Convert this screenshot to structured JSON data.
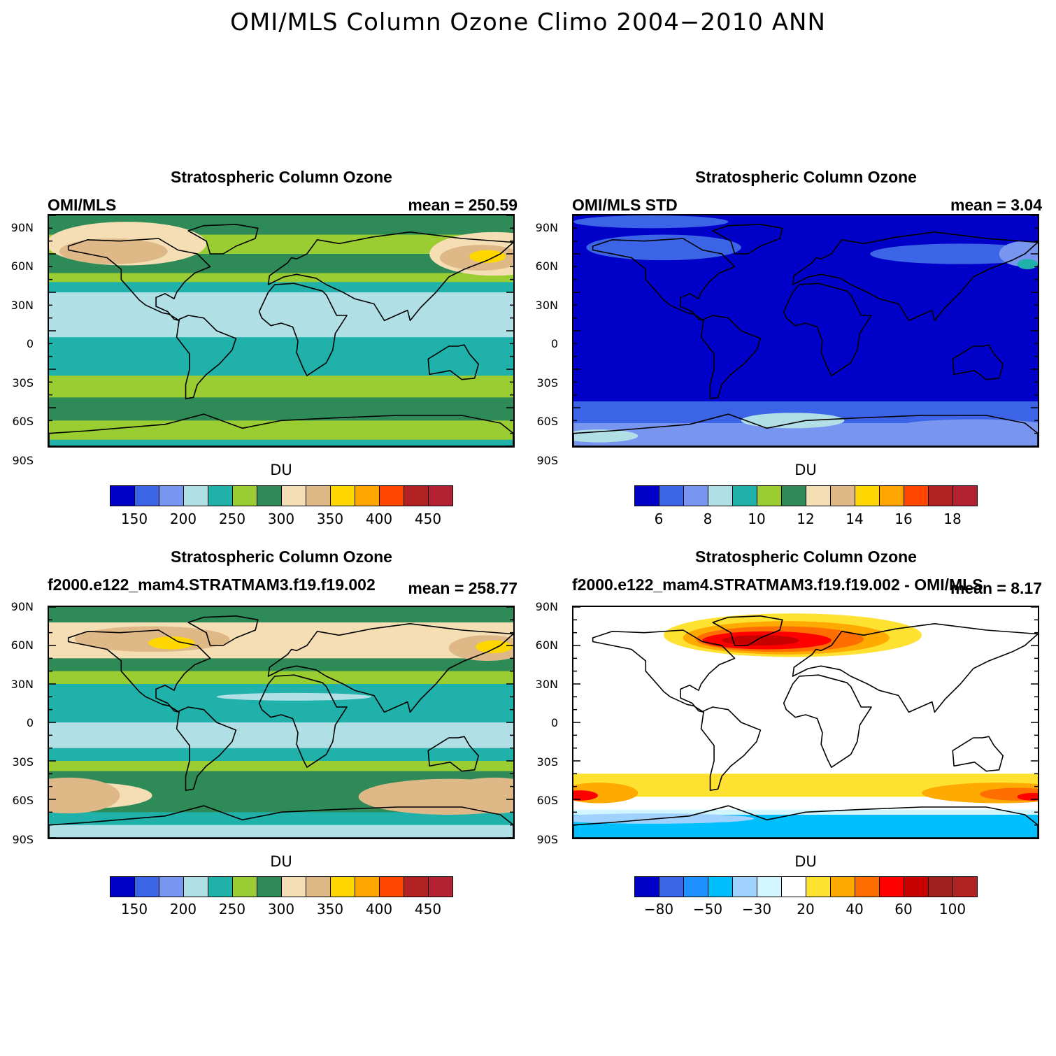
{
  "title": "OMI/MLS Column Ozone Climo 2004−2010 ANN",
  "lat_labels": [
    "90N",
    "60N",
    "30N",
    "0",
    "30S",
    "60S",
    "90S"
  ],
  "panels": [
    {
      "title": "Stratospheric Column Ozone",
      "left_string": "OMI/MLS",
      "right_string": "mean = 250.59",
      "units": "DU",
      "colorbar": {
        "colors": [
          "#0000c8",
          "#3c64e6",
          "#7896f0",
          "#b0e0e6",
          "#20b2aa",
          "#9acd32",
          "#2e8b57",
          "#f5deb3",
          "#deb887",
          "#ffd700",
          "#ffa500",
          "#ff4500",
          "#b22222",
          "#b22232"
        ],
        "labels": [
          "150",
          "200",
          "250",
          "300",
          "350",
          "400",
          "450"
        ]
      },
      "bands": [
        {
          "lat1": 90,
          "lat2": 75,
          "c": "#2e8b57"
        },
        {
          "lat1": 75,
          "lat2": 60,
          "c": "#9acd32"
        },
        {
          "lat1": 60,
          "lat2": 45,
          "c": "#2e8b57"
        },
        {
          "lat1": 45,
          "lat2": 38,
          "c": "#9acd32"
        },
        {
          "lat1": 38,
          "lat2": 30,
          "c": "#20b2aa"
        },
        {
          "lat1": 30,
          "lat2": -5,
          "c": "#b0e0e6"
        },
        {
          "lat1": -5,
          "lat2": -35,
          "c": "#20b2aa"
        },
        {
          "lat1": -35,
          "lat2": -52,
          "c": "#9acd32"
        },
        {
          "lat1": -52,
          "lat2": -70,
          "c": "#2e8b57"
        },
        {
          "lat1": -70,
          "lat2": -85,
          "c": "#9acd32"
        },
        {
          "lat1": -85,
          "lat2": -90,
          "c": "#20b2aa"
        }
      ],
      "blobs": [
        {
          "lon": -120,
          "lat": 68,
          "rx": 62,
          "ry": 17,
          "c": "#f5deb3"
        },
        {
          "lon": -130,
          "lat": 62,
          "rx": 42,
          "ry": 10,
          "c": "#deb887"
        },
        {
          "lon": 165,
          "lat": 60,
          "rx": 50,
          "ry": 17,
          "c": "#f5deb3"
        },
        {
          "lon": 155,
          "lat": 57,
          "rx": 32,
          "ry": 10,
          "c": "#deb887"
        },
        {
          "lon": 160,
          "lat": 58,
          "rx": 14,
          "ry": 5,
          "c": "#ffd700"
        }
      ]
    },
    {
      "title": "Stratospheric Column Ozone",
      "left_string": "OMI/MLS STD",
      "right_string": "mean =   3.04",
      "units": "DU",
      "colorbar": {
        "colors": [
          "#0000c8",
          "#3c64e6",
          "#7896f0",
          "#b0e0e6",
          "#20b2aa",
          "#9acd32",
          "#2e8b57",
          "#f5deb3",
          "#deb887",
          "#ffd700",
          "#ffa500",
          "#ff4500",
          "#b22222",
          "#b22232"
        ],
        "labels": [
          "6",
          "8",
          "10",
          "12",
          "14",
          "16",
          "18"
        ]
      },
      "bands": [
        {
          "lat1": 90,
          "lat2": -55,
          "c": "#0000c8"
        },
        {
          "lat1": -55,
          "lat2": -72,
          "c": "#3c64e6"
        },
        {
          "lat1": -72,
          "lat2": -90,
          "c": "#7896f0"
        }
      ],
      "blobs": [
        {
          "lon": -110,
          "lat": 65,
          "rx": 60,
          "ry": 10,
          "c": "#3c64e6"
        },
        {
          "lon": 120,
          "lat": 60,
          "rx": 70,
          "ry": 8,
          "c": "#3c64e6"
        },
        {
          "lon": 170,
          "lat": 60,
          "rx": 20,
          "ry": 10,
          "c": "#7896f0"
        },
        {
          "lon": 172,
          "lat": 52,
          "rx": 8,
          "ry": 4,
          "c": "#20b2aa"
        },
        {
          "lon": -120,
          "lat": 85,
          "rx": 60,
          "ry": 5,
          "c": "#3c64e6"
        },
        {
          "lon": -10,
          "lat": -70,
          "rx": 40,
          "ry": 6,
          "c": "#b0e0e6"
        },
        {
          "lon": 130,
          "lat": -75,
          "rx": 60,
          "ry": 6,
          "c": "#7896f0"
        },
        {
          "lon": -160,
          "lat": -82,
          "rx": 30,
          "ry": 5,
          "c": "#b0e0e6"
        }
      ]
    },
    {
      "title": "Stratospheric Column Ozone",
      "left_string": "f2000.e122_mam4.STRATMAM3.f19.f19.002",
      "right_string": "mean = 258.77",
      "units": "DU",
      "colorbar": {
        "colors": [
          "#0000c8",
          "#3c64e6",
          "#7896f0",
          "#b0e0e6",
          "#20b2aa",
          "#9acd32",
          "#2e8b57",
          "#f5deb3",
          "#deb887",
          "#ffd700",
          "#ffa500",
          "#ff4500",
          "#b22222",
          "#b22232"
        ],
        "labels": [
          "150",
          "200",
          "250",
          "300",
          "350",
          "400",
          "450"
        ]
      },
      "bands": [
        {
          "lat1": 90,
          "lat2": 78,
          "c": "#2e8b57"
        },
        {
          "lat1": 78,
          "lat2": 50,
          "c": "#f5deb3"
        },
        {
          "lat1": 50,
          "lat2": 40,
          "c": "#2e8b57"
        },
        {
          "lat1": 40,
          "lat2": 30,
          "c": "#9acd32"
        },
        {
          "lat1": 30,
          "lat2": 0,
          "c": "#20b2aa"
        },
        {
          "lat1": 0,
          "lat2": -20,
          "c": "#b0e0e6"
        },
        {
          "lat1": -20,
          "lat2": -30,
          "c": "#20b2aa"
        },
        {
          "lat1": -30,
          "lat2": -38,
          "c": "#9acd32"
        },
        {
          "lat1": -38,
          "lat2": -45,
          "c": "#2e8b57"
        },
        {
          "lat1": -45,
          "lat2": -70,
          "c": "#2e8b57"
        },
        {
          "lat1": -70,
          "lat2": -80,
          "c": "#20b2aa"
        },
        {
          "lat1": -80,
          "lat2": -90,
          "c": "#b0e0e6"
        }
      ],
      "blobs": [
        {
          "lon": -100,
          "lat": 65,
          "rx": 60,
          "ry": 10,
          "c": "#deb887"
        },
        {
          "lon": -85,
          "lat": 62,
          "rx": 18,
          "ry": 5,
          "c": "#ffd700"
        },
        {
          "lon": 160,
          "lat": 58,
          "rx": 30,
          "ry": 10,
          "c": "#deb887"
        },
        {
          "lon": 165,
          "lat": 59,
          "rx": 14,
          "ry": 5,
          "c": "#ffd700"
        },
        {
          "lon": 10,
          "lat": 20,
          "rx": 60,
          "ry": 3,
          "c": "#b0e0e6"
        },
        {
          "lon": -150,
          "lat": -57,
          "rx": 50,
          "ry": 10,
          "c": "#f5deb3"
        },
        {
          "lon": -165,
          "lat": -57,
          "rx": 40,
          "ry": 14,
          "c": "#deb887"
        },
        {
          "lon": 130,
          "lat": -58,
          "rx": 70,
          "ry": 14,
          "c": "#deb887"
        },
        {
          "lon": 165,
          "lat": -57,
          "rx": 40,
          "ry": 14,
          "c": "#deb887"
        }
      ]
    },
    {
      "title": "Stratospheric Column Ozone",
      "left_string": "f2000.e122_mam4.STRATMAM3.f19.f19.002 - OMI/MLS",
      "right_string": "mean =   8.17",
      "units": "DU",
      "colorbar": {
        "colors": [
          "#0000c8",
          "#3c64e6",
          "#1e90ff",
          "#00bfff",
          "#a0d2ff",
          "#d2f5ff",
          "#ffffff",
          "#ffe132",
          "#ffaa00",
          "#ff6e00",
          "#ff0000",
          "#c80000",
          "#a02020",
          "#b22222"
        ],
        "labels": [
          "−80",
          "−50",
          "−30",
          "20",
          "40",
          "60",
          "100"
        ]
      },
      "bands": [
        {
          "lat1": 90,
          "lat2": -40,
          "c": "#ffffff"
        },
        {
          "lat1": -40,
          "lat2": -58,
          "c": "#ffe132"
        },
        {
          "lat1": -58,
          "lat2": -68,
          "c": "#ffffff"
        },
        {
          "lat1": -68,
          "lat2": -72,
          "c": "#d2f5ff"
        },
        {
          "lat1": -72,
          "lat2": -90,
          "c": "#00bfff"
        }
      ],
      "blobs": [
        {
          "lon": -10,
          "lat": 68,
          "rx": 100,
          "ry": 17,
          "c": "#ffe132"
        },
        {
          "lon": -15,
          "lat": 66,
          "rx": 80,
          "ry": 13,
          "c": "#ffaa00"
        },
        {
          "lon": -20,
          "lat": 65,
          "rx": 65,
          "ry": 10,
          "c": "#ff6e00"
        },
        {
          "lon": -30,
          "lat": 64,
          "rx": 50,
          "ry": 7,
          "c": "#ff0000"
        },
        {
          "lon": -35,
          "lat": 64,
          "rx": 30,
          "ry": 4,
          "c": "#c80000"
        },
        {
          "lon": -160,
          "lat": -55,
          "rx": 30,
          "ry": 8,
          "c": "#ffaa00"
        },
        {
          "lon": -175,
          "lat": -57,
          "rx": 14,
          "ry": 4,
          "c": "#ff0000"
        },
        {
          "lon": 150,
          "lat": -55,
          "rx": 60,
          "ry": 8,
          "c": "#ffaa00"
        },
        {
          "lon": 165,
          "lat": -56,
          "rx": 30,
          "ry": 5,
          "c": "#ff6e00"
        },
        {
          "lon": 176,
          "lat": -58,
          "rx": 12,
          "ry": 3,
          "c": "#ff0000"
        },
        {
          "lon": -120,
          "lat": -75,
          "rx": 80,
          "ry": 4,
          "c": "#a0d2ff"
        }
      ]
    }
  ]
}
